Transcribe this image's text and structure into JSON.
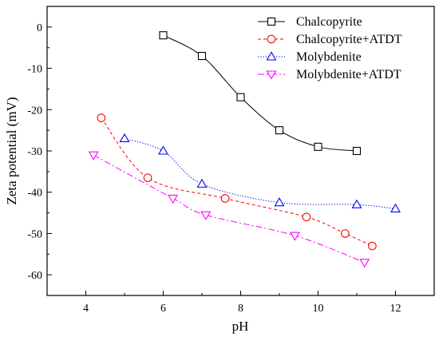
{
  "chart_data": {
    "type": "line",
    "xlabel": "pH",
    "ylabel": "Zeta potential (mV)",
    "xlim": [
      3,
      13
    ],
    "ylim": [
      -65,
      5
    ],
    "x_ticks": [
      4,
      6,
      8,
      10,
      12
    ],
    "y_ticks": [
      0,
      -10,
      -20,
      -30,
      -40,
      -50,
      -60
    ],
    "grid": false,
    "legend_placement": "top-right",
    "series": [
      {
        "name": "Chalcopyrite",
        "color": "#000000",
        "marker": "square",
        "line_style": "solid",
        "x": [
          6,
          7,
          8,
          9,
          10,
          11
        ],
        "y": [
          -2,
          -7,
          -17,
          -25,
          -29,
          -30
        ]
      },
      {
        "name": "Chalcopyrite+ATDT",
        "color": "#ff0000",
        "marker": "circle",
        "line_style": "dashed",
        "x": [
          4.4,
          5.6,
          7.6,
          9.7,
          10.7,
          11.4
        ],
        "y": [
          -22,
          -36.5,
          -41.5,
          -46,
          -50,
          -53
        ]
      },
      {
        "name": "Molybdenite",
        "color": "#0000ff",
        "marker": "triangle-up",
        "line_style": "dotted",
        "x": [
          5,
          6,
          7,
          9,
          11,
          12
        ],
        "y": [
          -27,
          -30,
          -38,
          -42.5,
          -43,
          -44
        ]
      },
      {
        "name": "Molybdenite+ATDT",
        "color": "#ff00ff",
        "marker": "triangle-down",
        "line_style": "dashdot",
        "x": [
          4.2,
          6.25,
          7.1,
          9.4,
          11.2
        ],
        "y": [
          -31,
          -41.5,
          -45.5,
          -50.5,
          -57
        ]
      }
    ]
  }
}
